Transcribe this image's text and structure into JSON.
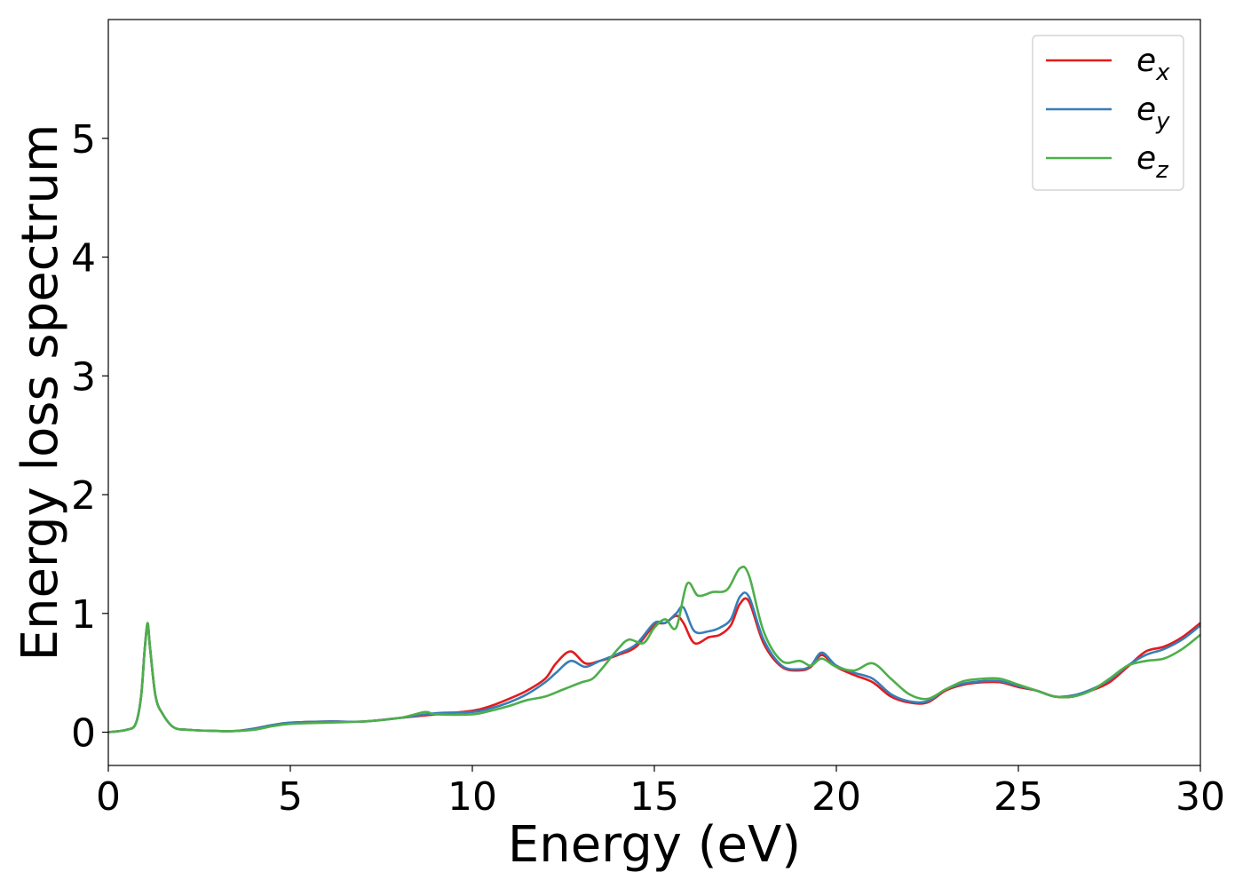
{
  "chart_data": {
    "type": "line",
    "title": "",
    "xlabel": "Energy (eV)",
    "ylabel": "Energy loss spectrum",
    "xlim": [
      0,
      30
    ],
    "ylim": [
      -0.28,
      6.0
    ],
    "xticks": [
      0,
      5,
      10,
      15,
      20,
      25,
      30
    ],
    "xtick_labels": [
      "0",
      "5",
      "10",
      "15",
      "20",
      "25",
      "30"
    ],
    "yticks": [
      0,
      1,
      2,
      3,
      4,
      5
    ],
    "ytick_labels": [
      "0",
      "1",
      "2",
      "3",
      "4",
      "5"
    ],
    "grid": false,
    "legend": {
      "placement": "top-right",
      "entries": [
        {
          "base": "e",
          "sub": "x",
          "color": "#e41a1c"
        },
        {
          "base": "e",
          "sub": "y",
          "color": "#377eb8"
        },
        {
          "base": "e",
          "sub": "z",
          "color": "#4daf4a"
        }
      ]
    },
    "series": [
      {
        "key": "ex",
        "color": "#e41a1c",
        "points": [
          [
            0,
            0.0
          ],
          [
            0.5,
            0.02
          ],
          [
            0.75,
            0.07
          ],
          [
            0.9,
            0.3
          ],
          [
            1.0,
            0.7
          ],
          [
            1.08,
            0.9
          ],
          [
            1.15,
            0.7
          ],
          [
            1.3,
            0.3
          ],
          [
            1.5,
            0.15
          ],
          [
            1.8,
            0.04
          ],
          [
            2.2,
            0.02
          ],
          [
            3,
            0.01
          ],
          [
            3.5,
            0.01
          ],
          [
            4,
            0.03
          ],
          [
            4.5,
            0.06
          ],
          [
            5,
            0.08
          ],
          [
            6,
            0.09
          ],
          [
            7,
            0.09
          ],
          [
            8,
            0.12
          ],
          [
            9,
            0.15
          ],
          [
            10,
            0.18
          ],
          [
            10.5,
            0.22
          ],
          [
            11,
            0.28
          ],
          [
            11.5,
            0.35
          ],
          [
            12,
            0.45
          ],
          [
            12.3,
            0.58
          ],
          [
            12.7,
            0.68
          ],
          [
            13.1,
            0.58
          ],
          [
            13.5,
            0.6
          ],
          [
            14,
            0.65
          ],
          [
            14.5,
            0.72
          ],
          [
            15,
            0.9
          ],
          [
            15.3,
            0.92
          ],
          [
            15.6,
            0.98
          ],
          [
            15.8,
            0.92
          ],
          [
            16.1,
            0.75
          ],
          [
            16.5,
            0.8
          ],
          [
            16.8,
            0.82
          ],
          [
            17.1,
            0.9
          ],
          [
            17.35,
            1.08
          ],
          [
            17.6,
            1.1
          ],
          [
            18,
            0.75
          ],
          [
            18.5,
            0.55
          ],
          [
            19,
            0.52
          ],
          [
            19.3,
            0.55
          ],
          [
            19.6,
            0.65
          ],
          [
            20,
            0.55
          ],
          [
            20.5,
            0.48
          ],
          [
            21,
            0.42
          ],
          [
            21.5,
            0.3
          ],
          [
            22,
            0.25
          ],
          [
            22.5,
            0.25
          ],
          [
            23,
            0.35
          ],
          [
            23.5,
            0.4
          ],
          [
            24,
            0.42
          ],
          [
            24.5,
            0.42
          ],
          [
            25,
            0.38
          ],
          [
            25.5,
            0.35
          ],
          [
            26,
            0.3
          ],
          [
            26.5,
            0.3
          ],
          [
            27,
            0.35
          ],
          [
            27.5,
            0.42
          ],
          [
            28,
            0.55
          ],
          [
            28.5,
            0.68
          ],
          [
            29,
            0.72
          ],
          [
            29.5,
            0.8
          ],
          [
            30,
            0.92
          ]
        ]
      },
      {
        "key": "ey",
        "color": "#377eb8",
        "points": [
          [
            0,
            0.0
          ],
          [
            0.5,
            0.02
          ],
          [
            0.75,
            0.07
          ],
          [
            0.9,
            0.3
          ],
          [
            1.0,
            0.7
          ],
          [
            1.08,
            0.9
          ],
          [
            1.15,
            0.7
          ],
          [
            1.3,
            0.3
          ],
          [
            1.5,
            0.15
          ],
          [
            1.8,
            0.04
          ],
          [
            2.2,
            0.02
          ],
          [
            3,
            0.01
          ],
          [
            3.5,
            0.01
          ],
          [
            4,
            0.03
          ],
          [
            4.5,
            0.06
          ],
          [
            5,
            0.08
          ],
          [
            6,
            0.09
          ],
          [
            7,
            0.09
          ],
          [
            8,
            0.12
          ],
          [
            9,
            0.16
          ],
          [
            10,
            0.17
          ],
          [
            10.5,
            0.2
          ],
          [
            11,
            0.25
          ],
          [
            11.5,
            0.32
          ],
          [
            12,
            0.42
          ],
          [
            12.3,
            0.5
          ],
          [
            12.7,
            0.6
          ],
          [
            13.1,
            0.55
          ],
          [
            13.5,
            0.6
          ],
          [
            14,
            0.66
          ],
          [
            14.5,
            0.74
          ],
          [
            15,
            0.92
          ],
          [
            15.3,
            0.92
          ],
          [
            15.6,
            1.0
          ],
          [
            15.8,
            1.05
          ],
          [
            16.1,
            0.85
          ],
          [
            16.5,
            0.85
          ],
          [
            16.8,
            0.88
          ],
          [
            17.1,
            0.95
          ],
          [
            17.35,
            1.14
          ],
          [
            17.6,
            1.14
          ],
          [
            18,
            0.78
          ],
          [
            18.5,
            0.56
          ],
          [
            19,
            0.53
          ],
          [
            19.3,
            0.56
          ],
          [
            19.6,
            0.67
          ],
          [
            20,
            0.56
          ],
          [
            20.5,
            0.5
          ],
          [
            21,
            0.45
          ],
          [
            21.5,
            0.32
          ],
          [
            22,
            0.26
          ],
          [
            22.5,
            0.26
          ],
          [
            23,
            0.36
          ],
          [
            23.5,
            0.41
          ],
          [
            24,
            0.43
          ],
          [
            24.5,
            0.43
          ],
          [
            25,
            0.39
          ],
          [
            25.5,
            0.35
          ],
          [
            26,
            0.3
          ],
          [
            26.5,
            0.31
          ],
          [
            27,
            0.36
          ],
          [
            27.5,
            0.44
          ],
          [
            28,
            0.56
          ],
          [
            28.5,
            0.65
          ],
          [
            29,
            0.7
          ],
          [
            29.5,
            0.78
          ],
          [
            30,
            0.9
          ]
        ]
      },
      {
        "key": "ez",
        "color": "#4daf4a",
        "points": [
          [
            0,
            0.0
          ],
          [
            0.5,
            0.02
          ],
          [
            0.75,
            0.07
          ],
          [
            0.9,
            0.3
          ],
          [
            1.0,
            0.7
          ],
          [
            1.08,
            0.92
          ],
          [
            1.15,
            0.7
          ],
          [
            1.3,
            0.3
          ],
          [
            1.5,
            0.15
          ],
          [
            1.8,
            0.04
          ],
          [
            2.2,
            0.02
          ],
          [
            3,
            0.01
          ],
          [
            3.5,
            0.01
          ],
          [
            4,
            0.02
          ],
          [
            4.5,
            0.05
          ],
          [
            5,
            0.07
          ],
          [
            6,
            0.08
          ],
          [
            7,
            0.09
          ],
          [
            8,
            0.12
          ],
          [
            8.7,
            0.17
          ],
          [
            9,
            0.15
          ],
          [
            10,
            0.15
          ],
          [
            10.5,
            0.18
          ],
          [
            11,
            0.22
          ],
          [
            11.5,
            0.27
          ],
          [
            12,
            0.3
          ],
          [
            12.5,
            0.36
          ],
          [
            13,
            0.42
          ],
          [
            13.3,
            0.45
          ],
          [
            13.6,
            0.55
          ],
          [
            14,
            0.7
          ],
          [
            14.3,
            0.78
          ],
          [
            14.7,
            0.75
          ],
          [
            15,
            0.88
          ],
          [
            15.3,
            0.95
          ],
          [
            15.6,
            0.88
          ],
          [
            15.9,
            1.25
          ],
          [
            16.2,
            1.15
          ],
          [
            16.6,
            1.18
          ],
          [
            17,
            1.2
          ],
          [
            17.35,
            1.38
          ],
          [
            17.6,
            1.32
          ],
          [
            18,
            0.85
          ],
          [
            18.5,
            0.6
          ],
          [
            19,
            0.6
          ],
          [
            19.3,
            0.56
          ],
          [
            19.6,
            0.62
          ],
          [
            20,
            0.55
          ],
          [
            20.5,
            0.52
          ],
          [
            21,
            0.58
          ],
          [
            21.5,
            0.45
          ],
          [
            22,
            0.32
          ],
          [
            22.5,
            0.28
          ],
          [
            23,
            0.36
          ],
          [
            23.5,
            0.43
          ],
          [
            24,
            0.45
          ],
          [
            24.5,
            0.45
          ],
          [
            25,
            0.4
          ],
          [
            25.5,
            0.35
          ],
          [
            26,
            0.3
          ],
          [
            26.5,
            0.3
          ],
          [
            27,
            0.35
          ],
          [
            27.5,
            0.45
          ],
          [
            28,
            0.56
          ],
          [
            28.5,
            0.6
          ],
          [
            29,
            0.62
          ],
          [
            29.5,
            0.7
          ],
          [
            30,
            0.82
          ]
        ]
      }
    ]
  }
}
